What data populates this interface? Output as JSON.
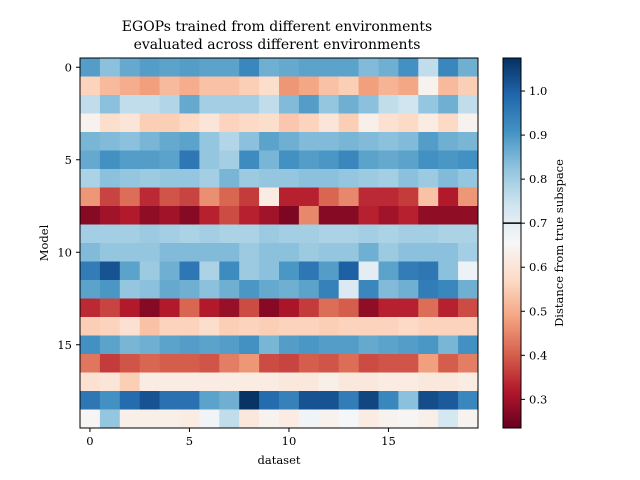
{
  "chart_data": {
    "type": "heatmap",
    "title": [
      "EGOPs trained from different environments",
      "evaluated across different environments"
    ],
    "xlabel": "dataset",
    "ylabel": "Model",
    "x_ticks": [
      0,
      5,
      10,
      15
    ],
    "y_ticks": [
      0,
      5,
      10,
      15
    ],
    "n_rows": 20,
    "n_cols": 20,
    "colormap": "RdBu",
    "colorbar": {
      "label": "Distance from true subspace",
      "min": 0.235,
      "max": 1.075,
      "ticks": [
        0.3,
        0.4,
        0.5,
        0.6,
        0.7,
        0.8,
        0.9,
        1.0
      ],
      "tick_labels": [
        "0.3",
        "0.4",
        "0.5",
        "0.6",
        "0.7",
        "0.8",
        "0.9",
        "1.0"
      ],
      "marker_line": 0.7
    },
    "values": [
      [
        0.89,
        0.83,
        0.87,
        0.89,
        0.88,
        0.89,
        0.88,
        0.88,
        0.93,
        0.86,
        0.87,
        0.88,
        0.88,
        0.88,
        0.84,
        0.86,
        0.91,
        0.76,
        0.93,
        0.86
      ],
      [
        0.56,
        0.52,
        0.5,
        0.48,
        0.52,
        0.5,
        0.53,
        0.53,
        0.55,
        0.58,
        0.47,
        0.49,
        0.53,
        0.55,
        0.48,
        0.51,
        0.49,
        0.64,
        0.52,
        0.55
      ],
      [
        0.76,
        0.83,
        0.76,
        0.76,
        0.78,
        0.87,
        0.8,
        0.8,
        0.8,
        0.76,
        0.84,
        0.89,
        0.82,
        0.86,
        0.83,
        0.76,
        0.74,
        0.82,
        0.86,
        0.76
      ],
      [
        0.64,
        0.58,
        0.6,
        0.55,
        0.55,
        0.57,
        0.6,
        0.56,
        0.57,
        0.58,
        0.54,
        0.56,
        0.6,
        0.55,
        0.63,
        0.59,
        0.57,
        0.62,
        0.57,
        0.64
      ],
      [
        0.85,
        0.84,
        0.83,
        0.85,
        0.87,
        0.88,
        0.82,
        0.78,
        0.83,
        0.88,
        0.86,
        0.84,
        0.84,
        0.85,
        0.84,
        0.83,
        0.84,
        0.89,
        0.86,
        0.85
      ],
      [
        0.87,
        0.91,
        0.89,
        0.89,
        0.88,
        0.96,
        0.82,
        0.8,
        0.92,
        0.85,
        0.91,
        0.89,
        0.9,
        0.93,
        0.88,
        0.87,
        0.88,
        0.91,
        0.9,
        0.91
      ],
      [
        0.79,
        0.83,
        0.82,
        0.81,
        0.82,
        0.82,
        0.8,
        0.85,
        0.81,
        0.82,
        0.82,
        0.83,
        0.83,
        0.82,
        0.81,
        0.8,
        0.83,
        0.81,
        0.84,
        0.82
      ],
      [
        0.47,
        0.37,
        0.42,
        0.34,
        0.39,
        0.37,
        0.46,
        0.41,
        0.36,
        0.62,
        0.33,
        0.33,
        0.41,
        0.45,
        0.34,
        0.34,
        0.36,
        0.53,
        0.32,
        0.47
      ],
      [
        0.27,
        0.3,
        0.32,
        0.28,
        0.3,
        0.27,
        0.33,
        0.38,
        0.33,
        0.3,
        0.26,
        0.45,
        0.27,
        0.27,
        0.33,
        0.3,
        0.33,
        0.28,
        0.28,
        0.28
      ],
      [
        0.8,
        0.8,
        0.8,
        0.81,
        0.8,
        0.79,
        0.8,
        0.79,
        0.79,
        0.81,
        0.8,
        0.8,
        0.79,
        0.79,
        0.8,
        0.79,
        0.8,
        0.8,
        0.79,
        0.79
      ],
      [
        0.84,
        0.82,
        0.82,
        0.82,
        0.84,
        0.84,
        0.84,
        0.84,
        0.81,
        0.83,
        0.83,
        0.81,
        0.82,
        0.82,
        0.86,
        0.81,
        0.83,
        0.83,
        0.83,
        0.8
      ],
      [
        0.95,
        1.02,
        0.88,
        0.81,
        0.86,
        0.96,
        0.79,
        0.92,
        0.81,
        0.83,
        0.9,
        0.96,
        0.89,
        1.0,
        0.7,
        0.88,
        0.95,
        0.96,
        0.83,
        0.68
      ],
      [
        0.88,
        0.9,
        0.82,
        0.83,
        0.87,
        0.86,
        0.83,
        0.86,
        0.9,
        0.87,
        0.86,
        0.88,
        0.94,
        0.72,
        0.93,
        0.84,
        0.86,
        0.95,
        0.93,
        0.86
      ],
      [
        0.34,
        0.37,
        0.32,
        0.27,
        0.32,
        0.41,
        0.32,
        0.29,
        0.38,
        0.27,
        0.31,
        0.36,
        0.42,
        0.4,
        0.28,
        0.33,
        0.33,
        0.42,
        0.33,
        0.38
      ],
      [
        0.55,
        0.56,
        0.59,
        0.53,
        0.56,
        0.56,
        0.58,
        0.55,
        0.56,
        0.55,
        0.56,
        0.56,
        0.55,
        0.56,
        0.56,
        0.56,
        0.57,
        0.56,
        0.56,
        0.56
      ],
      [
        0.91,
        0.88,
        0.85,
        0.86,
        0.88,
        0.89,
        0.88,
        0.89,
        0.91,
        0.85,
        0.89,
        0.9,
        0.89,
        0.89,
        0.87,
        0.88,
        0.89,
        0.9,
        0.85,
        0.91
      ],
      [
        0.43,
        0.36,
        0.39,
        0.41,
        0.4,
        0.4,
        0.39,
        0.44,
        0.47,
        0.38,
        0.37,
        0.4,
        0.39,
        0.42,
        0.38,
        0.39,
        0.39,
        0.48,
        0.4,
        0.44
      ],
      [
        0.59,
        0.6,
        0.55,
        0.62,
        0.62,
        0.62,
        0.62,
        0.62,
        0.62,
        0.62,
        0.61,
        0.61,
        0.63,
        0.61,
        0.61,
        0.62,
        0.62,
        0.61,
        0.61,
        0.62
      ],
      [
        0.96,
        0.91,
        0.98,
        1.02,
        0.97,
        0.97,
        0.88,
        0.86,
        1.07,
        0.98,
        0.94,
        1.02,
        1.02,
        0.95,
        1.04,
        0.93,
        0.83,
        1.03,
        1.01,
        0.93
      ],
      [
        0.65,
        0.82,
        0.63,
        0.63,
        0.63,
        0.62,
        0.67,
        0.76,
        0.61,
        0.64,
        0.62,
        0.67,
        0.64,
        0.66,
        0.62,
        0.64,
        0.65,
        0.63,
        0.73,
        0.64
      ]
    ]
  }
}
